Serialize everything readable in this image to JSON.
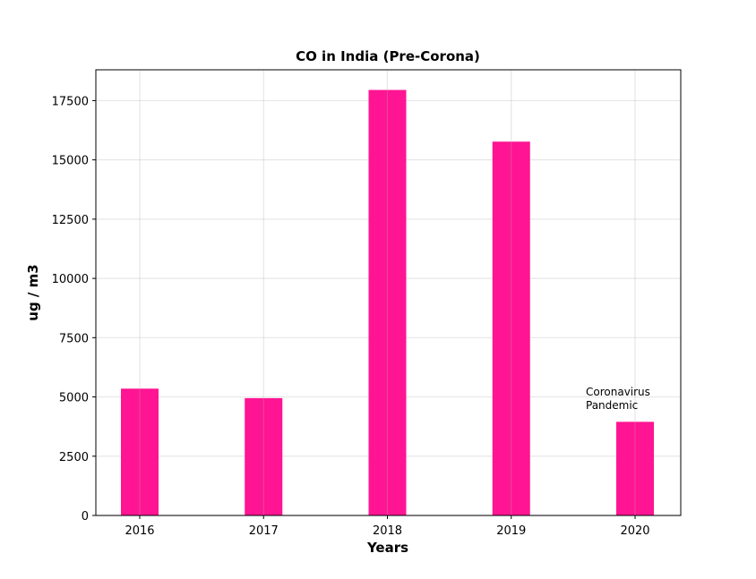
{
  "chart_data": {
    "type": "bar",
    "title": "CO in India (Pre-Corona)",
    "xlabel": "Years",
    "ylabel": "ug / m3",
    "categories": [
      "2016",
      "2017",
      "2018",
      "2019",
      "2020"
    ],
    "values": [
      5350,
      4950,
      17950,
      15770,
      3950
    ],
    "ylim": [
      0,
      18800
    ],
    "yticks": [
      0,
      2500,
      5000,
      7500,
      10000,
      12500,
      15000,
      17500
    ],
    "grid": true,
    "bar_color": "#ff1493",
    "annotation": {
      "lines": [
        "Coronavirus",
        "Pandemic"
      ],
      "category": "2020"
    }
  }
}
